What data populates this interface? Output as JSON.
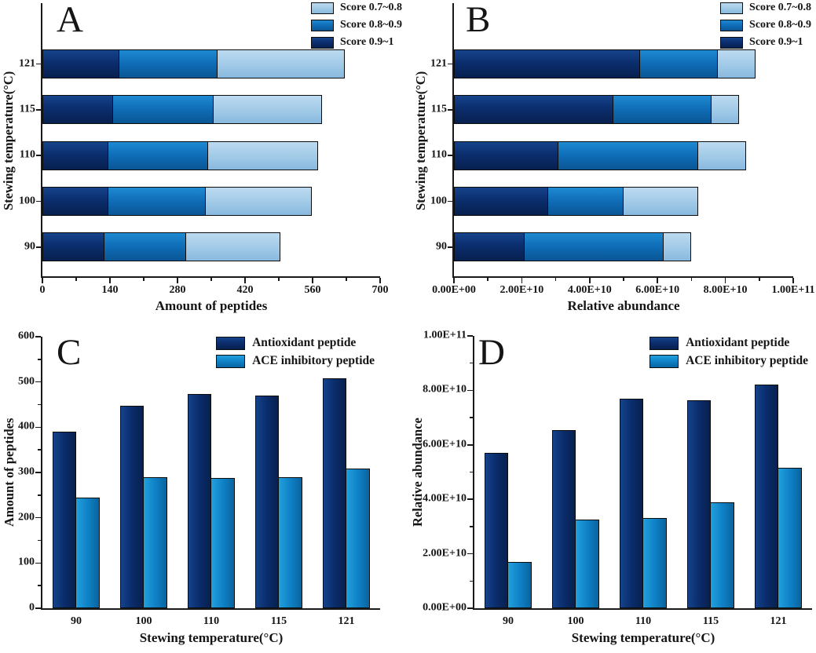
{
  "colors": {
    "score_0_9_to_1": "#0b2e6e",
    "score_0_8_to_0_9": "#0f6cb6",
    "score_0_7_to_0_8": "#a3cbe8",
    "antioxidant_peptide": "#0b2e6e",
    "ace_inhibitory_peptide": "#0f82c6",
    "axis": "#1a1a1a",
    "background": "#ffffff"
  },
  "chart_data": [
    {
      "id": "A",
      "letter": "A",
      "type": "bar",
      "orientation": "horizontal-stacked",
      "xlabel": "Amount of peptides",
      "ylabel": "Stewing temperature(°C)",
      "categories": [
        "90",
        "100",
        "110",
        "115",
        "121"
      ],
      "x_tick_labels": [
        "0",
        "140",
        "280",
        "420",
        "560",
        "700"
      ],
      "xlim": [
        0,
        700
      ],
      "grid": false,
      "legend_position": "top-right",
      "legend": [
        {
          "label": "Score 0.7~0.8",
          "key": "light"
        },
        {
          "label": "Score 0.8~0.9",
          "key": "mid"
        },
        {
          "label": "Score 0.9~1",
          "key": "dark"
        }
      ],
      "series": [
        {
          "name": "Score 0.9~1",
          "key": "dark",
          "values": [
            129,
            137,
            137,
            147,
            161
          ]
        },
        {
          "name": "Score 0.8~0.9",
          "key": "mid",
          "values": [
            170,
            203,
            207,
            209,
            203
          ]
        },
        {
          "name": "Score 0.7~0.8",
          "key": "light",
          "values": [
            195,
            219,
            228,
            224,
            263
          ]
        }
      ]
    },
    {
      "id": "B",
      "letter": "B",
      "type": "bar",
      "orientation": "horizontal-stacked",
      "xlabel": "Relative abundance",
      "ylabel": "Stewing temperature(°C)",
      "categories": [
        "90",
        "100",
        "110",
        "115",
        "121"
      ],
      "x_tick_labels": [
        "0.00E+00",
        "2.00E+10",
        "4.00E+10",
        "6.00E+10",
        "8.00E+10",
        "1.00E+11"
      ],
      "xlim": [
        0,
        100000000000.0
      ],
      "grid": false,
      "legend_position": "top-right",
      "legend": [
        {
          "label": "Score 0.7~0.8",
          "key": "light"
        },
        {
          "label": "Score 0.8~0.9",
          "key": "mid"
        },
        {
          "label": "Score 0.9~1",
          "key": "dark"
        }
      ],
      "series": [
        {
          "name": "Score 0.9~1",
          "key": "dark",
          "values": [
            21000000000.0,
            28000000000.0,
            31000000000.0,
            47000000000.0,
            55000000000.0
          ]
        },
        {
          "name": "Score 0.8~0.9",
          "key": "mid",
          "values": [
            41000000000.0,
            22000000000.0,
            41000000000.0,
            29000000000.0,
            23000000000.0
          ]
        },
        {
          "name": "Score 0.7~0.8",
          "key": "light",
          "values": [
            8000000000.0,
            22000000000.0,
            14000000000.0,
            8000000000.0,
            11000000000.0
          ]
        }
      ]
    },
    {
      "id": "C",
      "letter": "C",
      "type": "bar",
      "orientation": "vertical-grouped",
      "xlabel": "Stewing temperature(°C)",
      "ylabel": "Amount of peptides",
      "categories": [
        "90",
        "100",
        "110",
        "115",
        "121"
      ],
      "y_tick_labels": [
        "0",
        "100",
        "200",
        "300",
        "400",
        "500",
        "600"
      ],
      "ylim": [
        0,
        600
      ],
      "grid": false,
      "legend_position": "top-right",
      "legend": [
        {
          "label": "Antioxidant peptide",
          "key": "dark"
        },
        {
          "label": "ACE inhibitory peptide",
          "key": "ace"
        }
      ],
      "series": [
        {
          "name": "Antioxidant peptide",
          "key": "dark",
          "values": [
            390,
            447,
            473,
            470,
            508
          ]
        },
        {
          "name": "ACE inhibitory peptide",
          "key": "ace",
          "values": [
            245,
            290,
            288,
            290,
            308
          ]
        }
      ]
    },
    {
      "id": "D",
      "letter": "D",
      "type": "bar",
      "orientation": "vertical-grouped",
      "xlabel": "Stewing temperature(°C)",
      "ylabel": "Relative abundance",
      "categories": [
        "90",
        "100",
        "110",
        "115",
        "121"
      ],
      "y_tick_labels": [
        "0.00E+00",
        "2.00E+10",
        "4.00E+10",
        "6.00E+10",
        "8.00E+10",
        "1.00E+11"
      ],
      "ylim": [
        0,
        100000000000.0
      ],
      "grid": false,
      "legend_position": "top-right",
      "legend": [
        {
          "label": "Antioxidant peptide",
          "key": "dark"
        },
        {
          "label": "ACE inhibitory peptide",
          "key": "ace"
        }
      ],
      "series": [
        {
          "name": "Antioxidant peptide",
          "key": "dark",
          "values": [
            57000000000.0,
            65500000000.0,
            77000000000.0,
            76500000000.0,
            82000000000.0
          ]
        },
        {
          "name": "ACE inhibitory peptide",
          "key": "ace",
          "values": [
            17000000000.0,
            32500000000.0,
            33000000000.0,
            39000000000.0,
            51500000000.0
          ]
        }
      ]
    }
  ]
}
